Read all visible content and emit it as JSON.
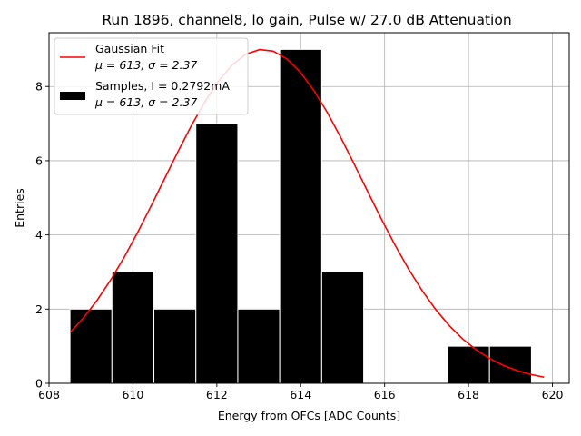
{
  "chart_data": {
    "type": "bar",
    "title": "Run 1896, channel8, lo gain, Pulse w/ 27.0 dB Attenuation",
    "xlabel": "Energy from OFCs [ADC Counts]",
    "ylabel": "Entries",
    "xlim": [
      608.0,
      620.4
    ],
    "ylim": [
      0,
      9.45
    ],
    "xticks": [
      608,
      610,
      612,
      614,
      616,
      618,
      620
    ],
    "yticks": [
      0,
      2,
      4,
      6,
      8
    ],
    "grid": true,
    "legend_position": "top-left",
    "histogram": {
      "name": "Samples, I = 0.2792mA",
      "stats": "μ = 613, σ = 2.37",
      "color": "#000000",
      "edge_color": "#ffffff",
      "bins": [
        {
          "x0": 608.5,
          "x1": 609.5,
          "count": 2
        },
        {
          "x0": 609.5,
          "x1": 610.5,
          "count": 3
        },
        {
          "x0": 610.5,
          "x1": 611.5,
          "count": 2
        },
        {
          "x0": 611.5,
          "x1": 612.5,
          "count": 7
        },
        {
          "x0": 612.5,
          "x1": 613.5,
          "count": 2
        },
        {
          "x0": 613.5,
          "x1": 614.5,
          "count": 9
        },
        {
          "x0": 614.5,
          "x1": 615.5,
          "count": 3
        },
        {
          "x0": 615.5,
          "x1": 616.5,
          "count": 0
        },
        {
          "x0": 616.5,
          "x1": 617.5,
          "count": 0
        },
        {
          "x0": 617.5,
          "x1": 618.5,
          "count": 1
        },
        {
          "x0": 618.5,
          "x1": 619.5,
          "count": 1
        }
      ]
    },
    "fit": {
      "name": "Gaussian Fit",
      "stats": "μ = 613, σ = 2.37",
      "color": "#ff0000",
      "amplitude": 9.0,
      "mean": 613.1,
      "sigma": 2.37,
      "x_start": 608.5,
      "x_end": 619.8,
      "points": 36
    }
  }
}
